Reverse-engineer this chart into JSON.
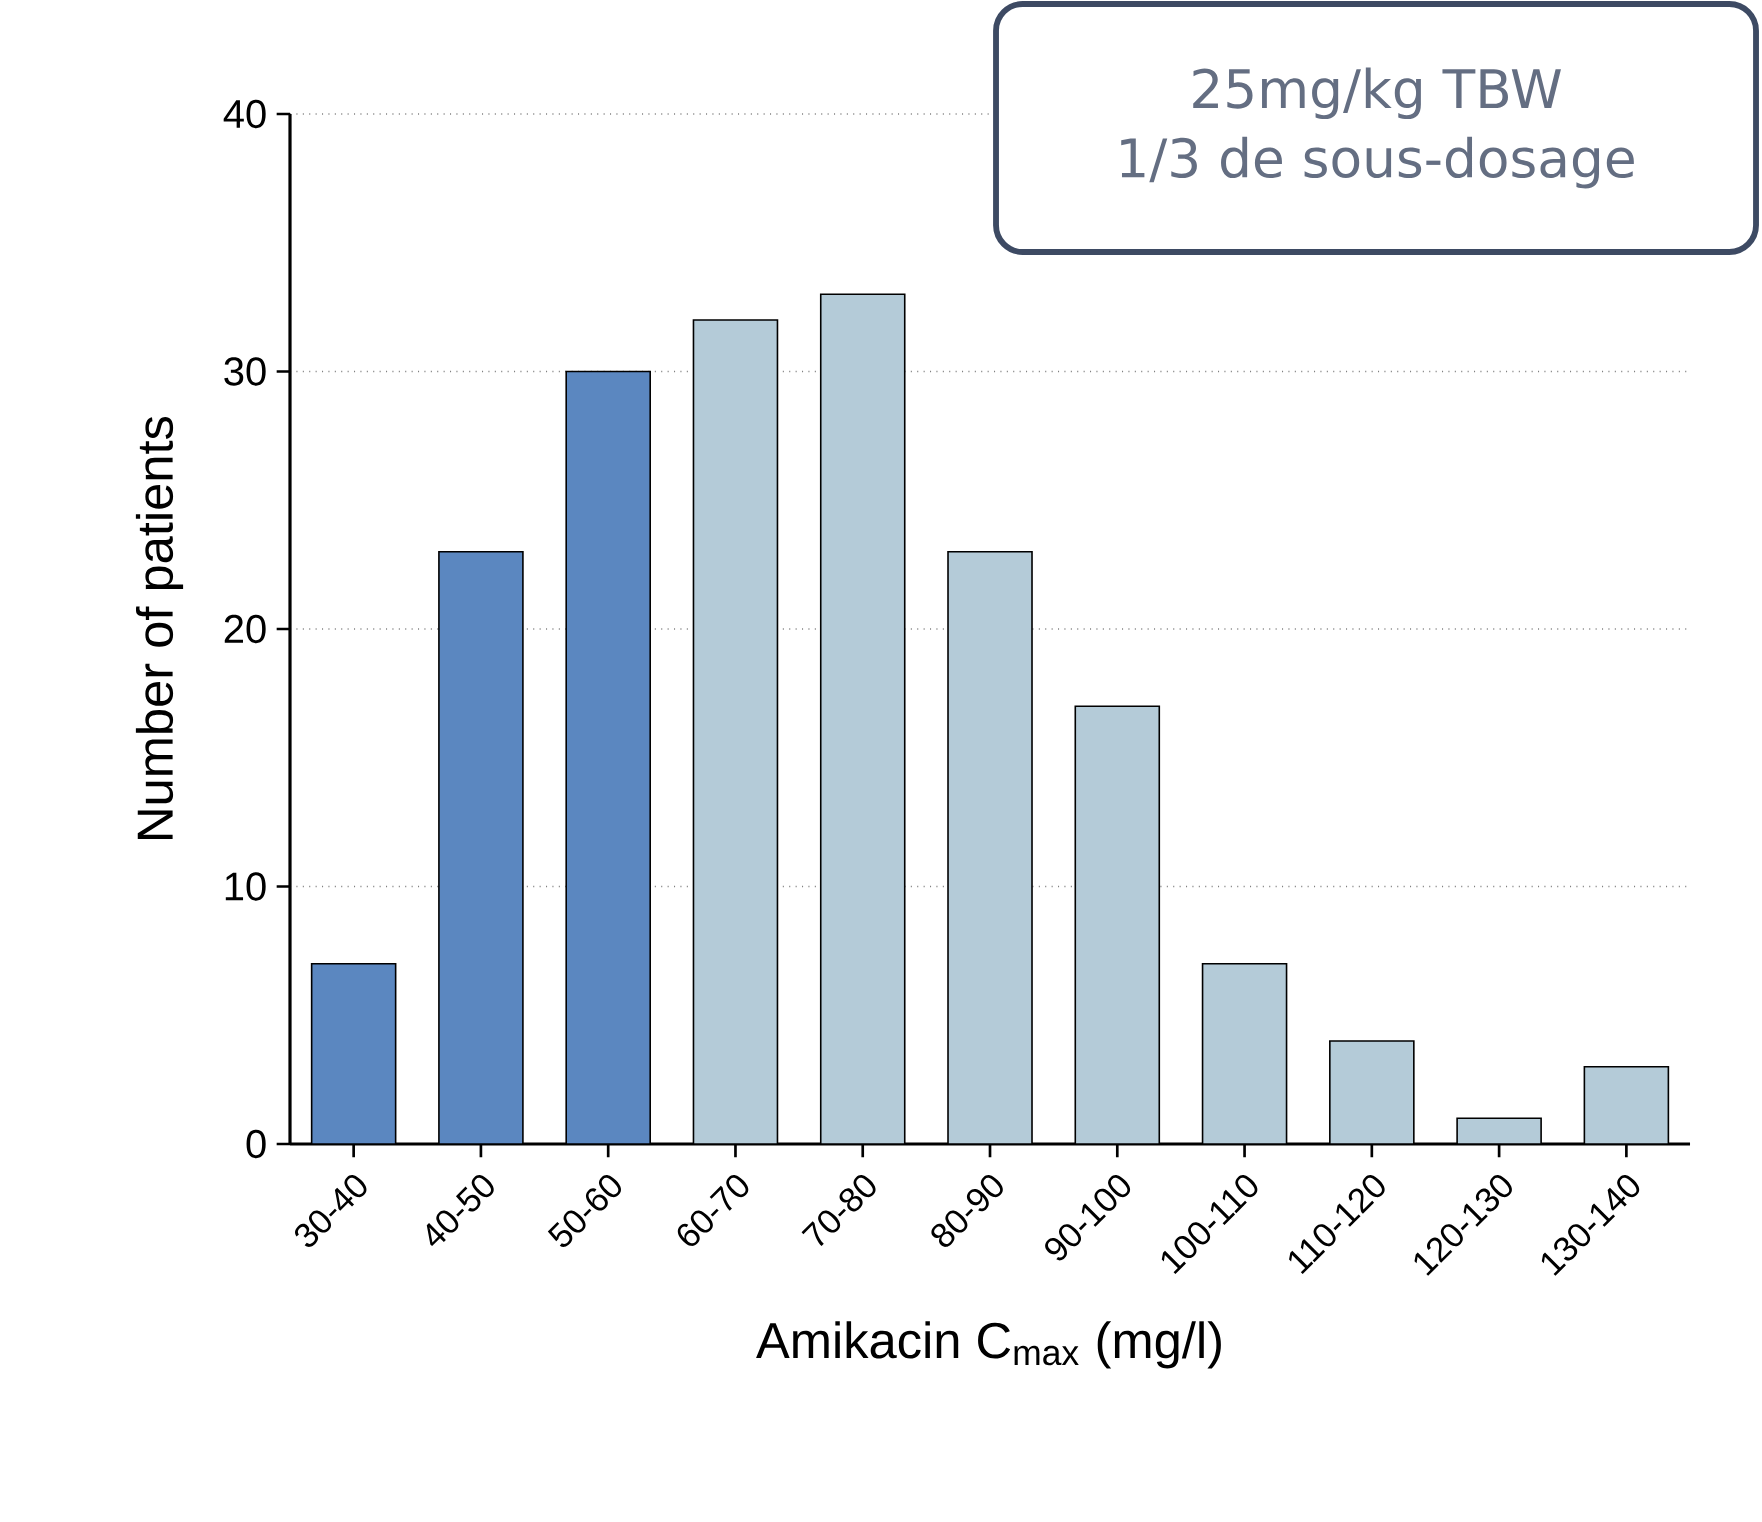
{
  "chart_data": {
    "type": "bar",
    "categories": [
      "30-40",
      "40-50",
      "50-60",
      "60-70",
      "70-80",
      "80-90",
      "90-100",
      "100-110",
      "110-120",
      "120-130",
      "130-140"
    ],
    "values": [
      7,
      23,
      30,
      32,
      33,
      23,
      17,
      7,
      4,
      1,
      3
    ],
    "colors": [
      "#5b87c0",
      "#5b87c0",
      "#5b87c0",
      "#b4cbd8",
      "#b4cbd8",
      "#b4cbd8",
      "#b4cbd8",
      "#b4cbd8",
      "#b4cbd8",
      "#b4cbd8",
      "#b4cbd8"
    ],
    "xlabel": "Amikacin C$_{max}$ (mg/l)",
    "ylabel": "Number of patients",
    "ylim": [
      0,
      40
    ],
    "yticks": [
      0,
      10,
      20,
      30,
      40
    ],
    "grid": "y",
    "annotations": [
      "25mg/kg TBW",
      "1/3 de sous-dosage"
    ]
  }
}
